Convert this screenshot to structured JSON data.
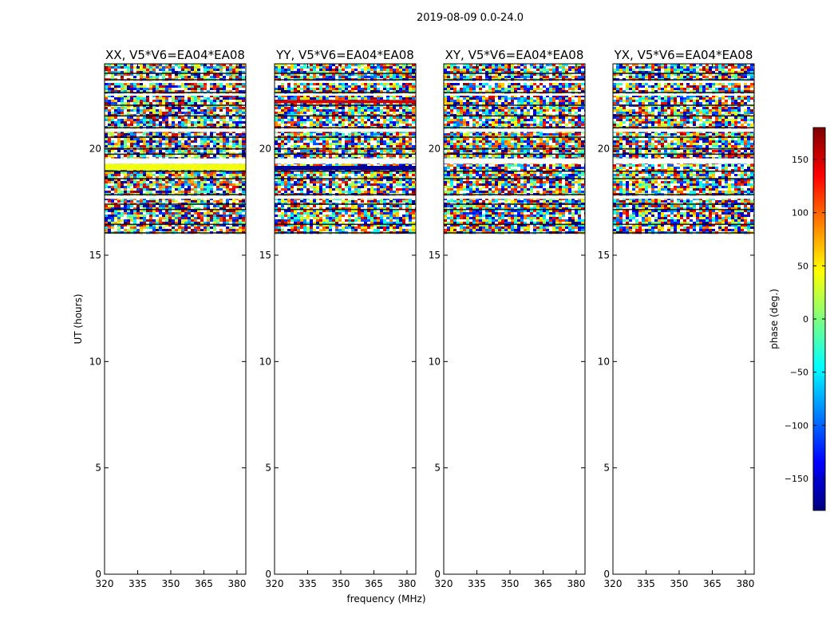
{
  "figure": {
    "title": "2019-08-09 0.0-24.0",
    "xlabel": "frequency (MHz)",
    "ylabel": "UT (hours)"
  },
  "chart_data": [
    {
      "type": "heatmap",
      "title": "XX, V5*V6=EA04*EA08",
      "xlabel": "frequency (MHz)",
      "ylabel": "UT (hours)",
      "xlim": [
        320,
        384
      ],
      "ylim": [
        0,
        24
      ],
      "x_ticks": [
        320,
        335,
        350,
        365,
        380
      ],
      "y_ticks": [
        0,
        5,
        10,
        15,
        20
      ],
      "data_hours": [
        16.0,
        24.0
      ],
      "gap_hours": [
        [
          23.1,
          23.2
        ],
        [
          22.5,
          22.6
        ],
        [
          20.8,
          20.95
        ],
        [
          19.3,
          19.55
        ],
        [
          17.65,
          17.8
        ]
      ],
      "uniform_bands": [
        {
          "hours": [
            19.0,
            19.3
          ],
          "phase_deg": 40
        }
      ]
    },
    {
      "type": "heatmap",
      "title": "YY, V5*V6=EA04*EA08",
      "xlabel": "frequency (MHz)",
      "ylabel": "UT (hours)",
      "xlim": [
        320,
        384
      ],
      "ylim": [
        0,
        24
      ],
      "x_ticks": [
        320,
        335,
        350,
        365,
        380
      ],
      "y_ticks": [
        0,
        5,
        10,
        15,
        20
      ],
      "data_hours": [
        16.0,
        24.0
      ],
      "gap_hours": [
        [
          23.1,
          23.2
        ],
        [
          22.5,
          22.6
        ],
        [
          20.8,
          20.95
        ],
        [
          19.3,
          19.55
        ],
        [
          17.65,
          17.8
        ]
      ],
      "uniform_bands": [
        {
          "hours": [
            22.15,
            22.3
          ],
          "phase_deg": 150
        },
        {
          "hours": [
            19.0,
            19.2
          ],
          "phase_deg": -170
        }
      ]
    },
    {
      "type": "heatmap",
      "title": "XY, V5*V6=EA04*EA08",
      "xlabel": "frequency (MHz)",
      "ylabel": "UT (hours)",
      "xlim": [
        320,
        384
      ],
      "ylim": [
        0,
        24
      ],
      "x_ticks": [
        320,
        335,
        350,
        365,
        380
      ],
      "y_ticks": [
        0,
        5,
        10,
        15,
        20
      ],
      "data_hours": [
        16.0,
        24.0
      ],
      "gap_hours": [
        [
          23.1,
          23.2
        ],
        [
          22.5,
          22.6
        ],
        [
          20.8,
          20.95
        ],
        [
          19.3,
          19.55
        ],
        [
          17.65,
          17.8
        ]
      ],
      "uniform_bands": []
    },
    {
      "type": "heatmap",
      "title": "YX, V5*V6=EA04*EA08",
      "xlabel": "frequency (MHz)",
      "ylabel": "UT (hours)",
      "xlim": [
        320,
        384
      ],
      "ylim": [
        0,
        24
      ],
      "x_ticks": [
        320,
        335,
        350,
        365,
        380
      ],
      "y_ticks": [
        0,
        5,
        10,
        15,
        20
      ],
      "data_hours": [
        16.0,
        24.0
      ],
      "gap_hours": [
        [
          23.1,
          23.2
        ],
        [
          22.5,
          22.6
        ],
        [
          20.8,
          20.95
        ],
        [
          19.3,
          19.55
        ],
        [
          17.65,
          17.8
        ]
      ],
      "uniform_bands": []
    }
  ],
  "colorbar": {
    "label": "phase (deg.)",
    "range": [
      -180,
      180
    ],
    "ticks": [
      -150,
      -100,
      -50,
      0,
      50,
      100,
      150
    ],
    "tick_labels": [
      "−150",
      "−100",
      "−50",
      "0",
      "50",
      "100",
      "150"
    ],
    "colormap": "jet",
    "stops": [
      "#00007f",
      "#0000ff",
      "#007fff",
      "#00ffff",
      "#7fff7f",
      "#ffff00",
      "#ff7f00",
      "#ff0000",
      "#7f0000"
    ]
  }
}
